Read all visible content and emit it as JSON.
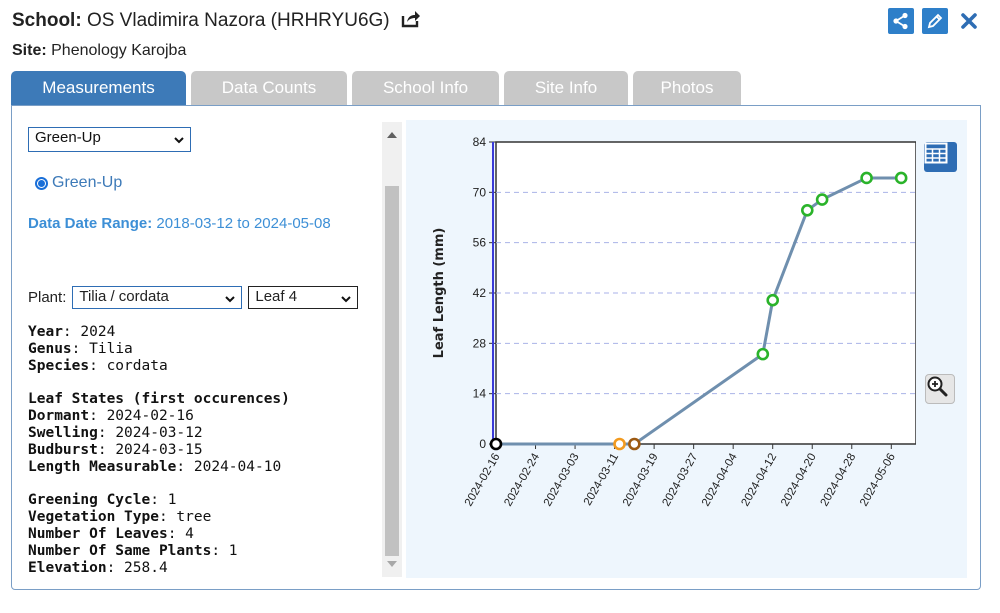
{
  "header": {
    "school_label": "School:",
    "school_name": "OS Vladimira Nazora (HRHRYU6G)",
    "site_label": "Site:",
    "site_name": "Phenology Karojba"
  },
  "actions": [
    "share-icon",
    "edit-icon",
    "close-icon"
  ],
  "tabs": [
    {
      "label": "Measurements",
      "active": true
    },
    {
      "label": "Data Counts",
      "active": false
    },
    {
      "label": "School Info",
      "active": false
    },
    {
      "label": "Site Info",
      "active": false
    },
    {
      "label": "Photos",
      "active": false
    }
  ],
  "left": {
    "measurement_select": "Green-Up",
    "radio_label": "Green-Up",
    "range_label": "Data Date Range:",
    "range_value": "2018-03-12 to 2024-05-08",
    "plant_label": "Plant:",
    "plant_select": "Tilia / cordata",
    "leaf_select": "Leaf 4",
    "year_label": "Year",
    "year": "2024",
    "genus_label": "Genus",
    "genus": "Tilia",
    "species_label": "Species",
    "species": "cordata",
    "leaf_states_title": "Leaf States (first occurences)",
    "dormant_label": "Dormant",
    "dormant": "2024-02-16",
    "swelling_label": "Swelling",
    "swelling": "2024-03-12",
    "budburst_label": "Budburst",
    "budburst": "2024-03-15",
    "length_label": "Length Measurable",
    "length": "2024-04-10",
    "cycle_label": "Greening Cycle",
    "cycle": "1",
    "veg_label": "Vegetation Type",
    "veg": "tree",
    "leaves_label": "Number Of Leaves",
    "leaves": "4",
    "same_label": "Number Of Same Plants",
    "same": "1",
    "elev_label": "Elevation",
    "elev": "258.4"
  },
  "chart_data": {
    "type": "line",
    "ylabel": "Leaf Length (mm)",
    "ylim": [
      0,
      84
    ],
    "yticks": [
      0,
      14,
      28,
      42,
      56,
      70,
      84
    ],
    "xlim": [
      "2024-02-16",
      "2024-05-11"
    ],
    "xticks": [
      "2024-02-16",
      "2024-02-24",
      "2024-03-03",
      "2024-03-11",
      "2024-03-19",
      "2024-03-27",
      "2024-04-04",
      "2024-04-12",
      "2024-04-20",
      "2024-04-28",
      "2024-05-06"
    ],
    "grid": "horizontal dashed",
    "line_color": "#6f8fae",
    "points": [
      {
        "x": "2024-02-16",
        "y": 0,
        "color": "#000000"
      },
      {
        "x": "2024-03-12",
        "y": 0,
        "color": "#f29a1f"
      },
      {
        "x": "2024-03-15",
        "y": 0,
        "color": "#9c5a12"
      },
      {
        "x": "2024-04-10",
        "y": 25,
        "color": "#2ab32a"
      },
      {
        "x": "2024-04-12",
        "y": 40,
        "color": "#2ab32a"
      },
      {
        "x": "2024-04-19",
        "y": 65,
        "color": "#2ab32a"
      },
      {
        "x": "2024-04-22",
        "y": 68,
        "color": "#2ab32a"
      },
      {
        "x": "2024-05-01",
        "y": 74,
        "color": "#2ab32a"
      },
      {
        "x": "2024-05-08",
        "y": 74,
        "color": "#2ab32a"
      }
    ]
  }
}
